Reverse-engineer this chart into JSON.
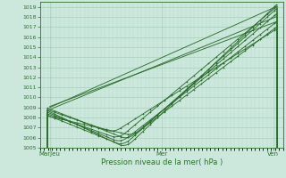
{
  "xlabel": "Pression niveau de la mer( hPa )",
  "background_color": "#cce8dd",
  "plot_bg_color": "#cce8dd",
  "grid_color_minor": "#b8d8cc",
  "grid_color_major": "#a0c8b4",
  "line_color": "#2d6e2d",
  "ylim": [
    1005,
    1019.5
  ],
  "yticks": [
    1005,
    1006,
    1007,
    1008,
    1009,
    1010,
    1011,
    1012,
    1013,
    1014,
    1015,
    1016,
    1017,
    1018,
    1019
  ],
  "xtick_labels": [
    "MarJeu",
    "Mer",
    "Ven"
  ],
  "xtick_positions": [
    0.04,
    0.5,
    0.96
  ],
  "xlim": [
    0.0,
    1.0
  ]
}
